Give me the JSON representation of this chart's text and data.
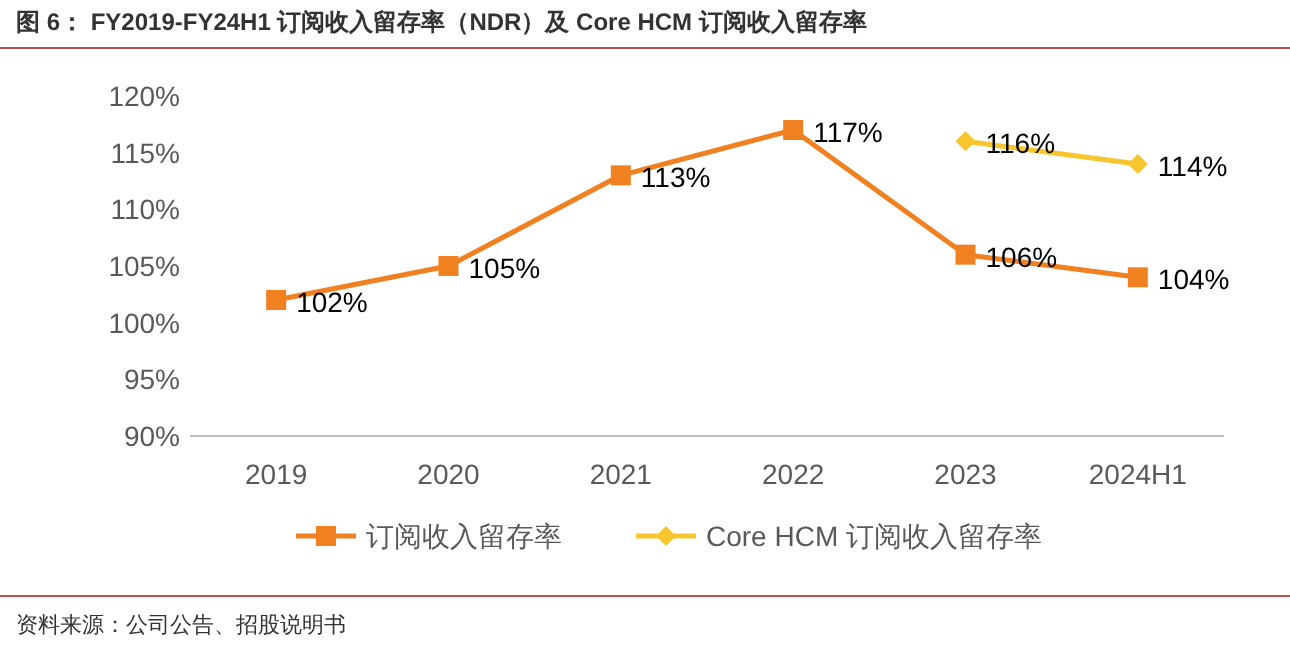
{
  "chart_data": {
    "type": "line",
    "title": "图 6：  FY2019-FY24H1 订阅收入留存率（NDR）及 Core HCM 订阅收入留存率",
    "categories": [
      "2019",
      "2020",
      "2021",
      "2022",
      "2023",
      "2024H1"
    ],
    "series": [
      {
        "name": "订阅收入留存率",
        "color": "#f08020",
        "marker": "square",
        "values": [
          102,
          105,
          113,
          117,
          106,
          104
        ],
        "value_labels": [
          "102%",
          "105%",
          "113%",
          "117%",
          "106%",
          "104%"
        ]
      },
      {
        "name": "Core HCM 订阅收入留存率",
        "color": "#f8c52c",
        "marker": "diamond",
        "values": [
          null,
          null,
          null,
          null,
          116,
          114
        ],
        "value_labels": [
          null,
          null,
          null,
          null,
          "116%",
          "114%"
        ]
      }
    ],
    "ylim": [
      90,
      120
    ],
    "yticks": [
      {
        "value": 90,
        "label": "90%"
      },
      {
        "value": 95,
        "label": "95%"
      },
      {
        "value": 100,
        "label": "100%"
      },
      {
        "value": 105,
        "label": "105%"
      },
      {
        "value": 110,
        "label": "110%"
      },
      {
        "value": 115,
        "label": "115%"
      },
      {
        "value": 120,
        "label": "120%"
      }
    ],
    "grid": false,
    "legend": "bottom",
    "annotations": [
      "资料来源：公司公告、招股说明书"
    ]
  }
}
